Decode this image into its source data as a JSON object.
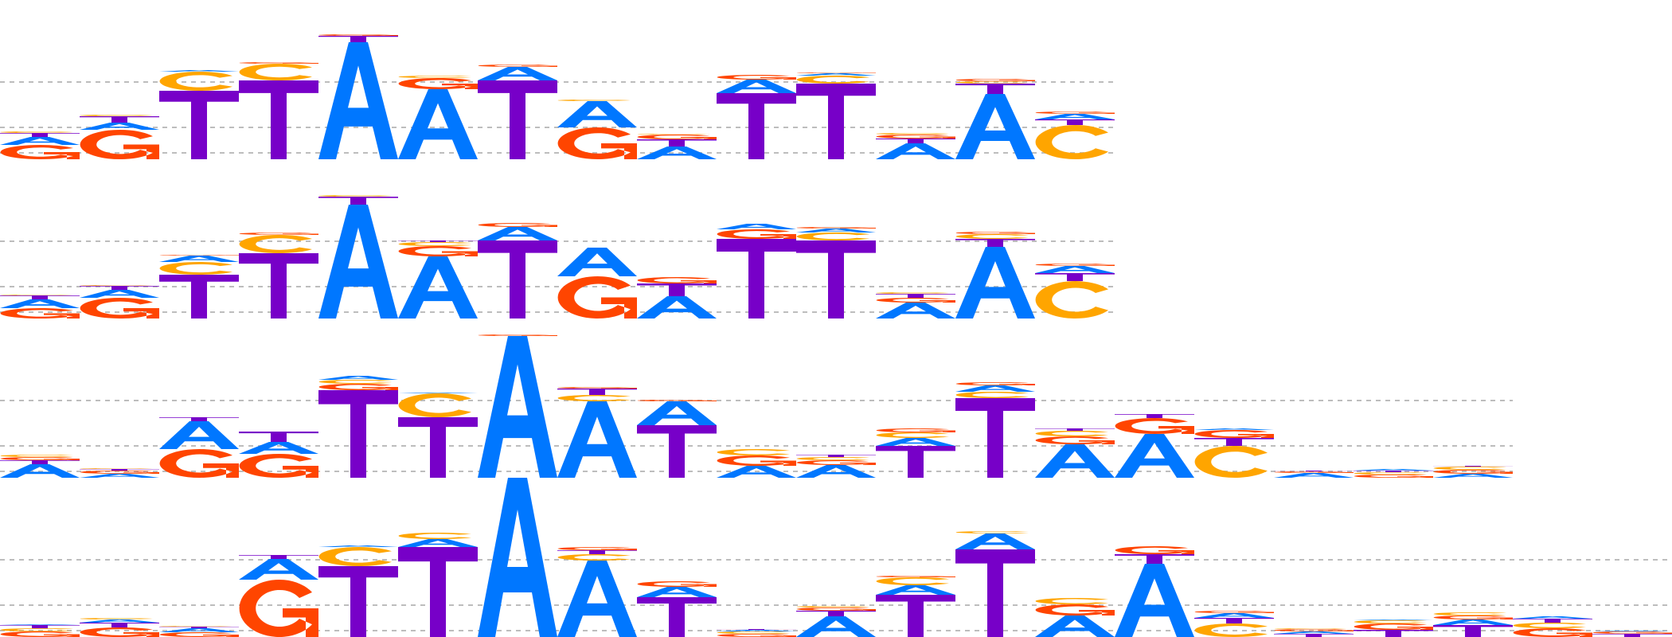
{
  "chart_data": {
    "type": "sequence-logo",
    "colors": {
      "A": "#0077ff",
      "C": "#ffa500",
      "G": "#ff4500",
      "T": "#7700c8"
    },
    "ylim": [
      0,
      2
    ],
    "gridlines": [
      0.08,
      0.4,
      0.97
    ],
    "rows": [
      {
        "columns": [
          [
            [
              "G",
              0.18
            ],
            [
              "A",
              0.1
            ],
            [
              "T",
              0.05
            ],
            [
              "C",
              0.02
            ]
          ],
          [
            [
              "G",
              0.37
            ],
            [
              "A",
              0.09
            ],
            [
              "T",
              0.08
            ],
            [
              "C",
              0.02
            ]
          ],
          [
            [
              "T",
              0.86
            ],
            [
              "C",
              0.24
            ],
            [
              "A",
              0.02
            ]
          ],
          [
            [
              "T",
              0.99
            ],
            [
              "C",
              0.21
            ],
            [
              "G",
              0.02
            ]
          ],
          [
            [
              "A",
              1.47
            ],
            [
              "T",
              0.08
            ],
            [
              "G",
              0.02
            ]
          ],
          [
            [
              "A",
              0.88
            ],
            [
              "G",
              0.14
            ],
            [
              "C",
              0.03
            ]
          ],
          [
            [
              "T",
              0.99
            ],
            [
              "A",
              0.17
            ],
            [
              "G",
              0.03
            ]
          ],
          [
            [
              "G",
              0.4
            ],
            [
              "A",
              0.33
            ],
            [
              "C",
              0.02
            ]
          ],
          [
            [
              "A",
              0.16
            ],
            [
              "T",
              0.09
            ],
            [
              "G",
              0.06
            ],
            [
              "C",
              0.01
            ]
          ],
          [
            [
              "T",
              0.83
            ],
            [
              "A",
              0.17
            ],
            [
              "G",
              0.06
            ]
          ],
          [
            [
              "T",
              0.95
            ],
            [
              "C",
              0.1
            ],
            [
              "A",
              0.03
            ],
            [
              "G",
              0.01
            ]
          ],
          [
            [
              "A",
              0.2
            ],
            [
              "T",
              0.06
            ],
            [
              "G",
              0.05
            ],
            [
              "C",
              0.02
            ]
          ],
          [
            [
              "A",
              0.82
            ],
            [
              "T",
              0.13
            ],
            [
              "C",
              0.03
            ],
            [
              "G",
              0.03
            ]
          ],
          [
            [
              "C",
              0.43
            ],
            [
              "T",
              0.07
            ],
            [
              "A",
              0.07
            ],
            [
              "G",
              0.03
            ]
          ]
        ]
      },
      {
        "columns": [
          [
            [
              "G",
              0.13
            ],
            [
              "A",
              0.11
            ],
            [
              "T",
              0.05
            ],
            [
              "C",
              0.01
            ]
          ],
          [
            [
              "G",
              0.26
            ],
            [
              "A",
              0.1
            ],
            [
              "T",
              0.05
            ],
            [
              "C",
              0.01
            ]
          ],
          [
            [
              "T",
              0.55
            ],
            [
              "C",
              0.16
            ],
            [
              "A",
              0.08
            ],
            [
              "G",
              0.01
            ]
          ],
          [
            [
              "T",
              0.82
            ],
            [
              "C",
              0.23
            ],
            [
              "G",
              0.03
            ]
          ],
          [
            [
              "A",
              1.43
            ],
            [
              "T",
              0.1
            ],
            [
              "C",
              0.02
            ]
          ],
          [
            [
              "A",
              0.78
            ],
            [
              "G",
              0.13
            ],
            [
              "C",
              0.05
            ],
            [
              "T",
              0.02
            ]
          ],
          [
            [
              "T",
              0.98
            ],
            [
              "A",
              0.17
            ],
            [
              "G",
              0.05
            ]
          ],
          [
            [
              "G",
              0.53
            ],
            [
              "A",
              0.36
            ]
          ],
          [
            [
              "A",
              0.28
            ],
            [
              "T",
              0.16
            ],
            [
              "G",
              0.08
            ]
          ],
          [
            [
              "T",
              1.0
            ],
            [
              "G",
              0.12
            ],
            [
              "A",
              0.07
            ]
          ],
          [
            [
              "T",
              0.98
            ],
            [
              "C",
              0.1
            ],
            [
              "A",
              0.05
            ],
            [
              "G",
              0.02
            ]
          ],
          [
            [
              "A",
              0.2
            ],
            [
              "G",
              0.06
            ],
            [
              "T",
              0.05
            ],
            [
              "C",
              0.02
            ]
          ],
          [
            [
              "A",
              0.9
            ],
            [
              "T",
              0.1
            ],
            [
              "C",
              0.06
            ],
            [
              "G",
              0.03
            ]
          ],
          [
            [
              "C",
              0.47
            ],
            [
              "T",
              0.1
            ],
            [
              "A",
              0.09
            ],
            [
              "G",
              0.03
            ]
          ]
        ]
      },
      {
        "columns": [
          [
            [
              "A",
              0.17
            ],
            [
              "T",
              0.05
            ],
            [
              "G",
              0.04
            ],
            [
              "C",
              0.03
            ]
          ],
          [
            [
              "A",
              0.05
            ],
            [
              "G",
              0.04
            ],
            [
              "T",
              0.02
            ],
            [
              "C",
              0.01
            ]
          ],
          [
            [
              "G",
              0.36
            ],
            [
              "A",
              0.35
            ],
            [
              "T",
              0.05
            ]
          ],
          [
            [
              "G",
              0.3
            ],
            [
              "A",
              0.15
            ],
            [
              "T",
              0.13
            ]
          ],
          [
            [
              "T",
              1.1
            ],
            [
              "G",
              0.08
            ],
            [
              "C",
              0.05
            ],
            [
              "A",
              0.05
            ]
          ],
          [
            [
              "T",
              0.76
            ],
            [
              "C",
              0.3
            ],
            [
              "A",
              0.01
            ]
          ],
          [
            [
              "A",
              1.78
            ],
            [
              "G",
              0.02
            ]
          ],
          [
            [
              "A",
              0.96
            ],
            [
              "C",
              0.08
            ],
            [
              "T",
              0.08
            ],
            [
              "G",
              0.02
            ]
          ],
          [
            [
              "T",
              0.66
            ],
            [
              "A",
              0.3
            ],
            [
              "G",
              0.02
            ]
          ],
          [
            [
              "A",
              0.15
            ],
            [
              "G",
              0.13
            ],
            [
              "C",
              0.08
            ]
          ],
          [
            [
              "A",
              0.16
            ],
            [
              "G",
              0.06
            ],
            [
              "C",
              0.04
            ],
            [
              "T",
              0.03
            ]
          ],
          [
            [
              "T",
              0.4
            ],
            [
              "A",
              0.1
            ],
            [
              "C",
              0.07
            ],
            [
              "G",
              0.05
            ]
          ],
          [
            [
              "T",
              1.0
            ],
            [
              "C",
              0.08
            ],
            [
              "A",
              0.08
            ],
            [
              "G",
              0.04
            ]
          ],
          [
            [
              "A",
              0.42
            ],
            [
              "G",
              0.1
            ],
            [
              "C",
              0.07
            ],
            [
              "T",
              0.03
            ]
          ],
          [
            [
              "A",
              0.55
            ],
            [
              "G",
              0.2
            ],
            [
              "T",
              0.05
            ]
          ],
          [
            [
              "C",
              0.4
            ],
            [
              "T",
              0.1
            ],
            [
              "G",
              0.1
            ],
            [
              "A",
              0.02
            ]
          ],
          [
            [
              "A",
              0.06
            ],
            [
              "G",
              0.02
            ],
            [
              "T",
              0.01
            ]
          ],
          [
            [
              "G",
              0.04
            ],
            [
              "C",
              0.03
            ],
            [
              "T",
              0.02
            ],
            [
              "A",
              0.02
            ]
          ],
          [
            [
              "A",
              0.05
            ],
            [
              "G",
              0.05
            ],
            [
              "C",
              0.04
            ],
            [
              "T",
              0.01
            ]
          ]
        ]
      },
      {
        "columns": [
          [
            [
              "G",
              0.07
            ],
            [
              "C",
              0.04
            ],
            [
              "T",
              0.04
            ],
            [
              "A",
              0.01
            ]
          ],
          [
            [
              "G",
              0.12
            ],
            [
              "T",
              0.06
            ],
            [
              "A",
              0.04
            ],
            [
              "C",
              0.02
            ]
          ],
          [
            [
              "G",
              0.06
            ],
            [
              "A",
              0.05
            ],
            [
              "T",
              0.02
            ],
            [
              "C",
              0.01
            ]
          ],
          [
            [
              "G",
              0.72
            ],
            [
              "A",
              0.26
            ],
            [
              "T",
              0.05
            ]
          ],
          [
            [
              "T",
              0.89
            ],
            [
              "C",
              0.24
            ],
            [
              "A",
              0.02
            ]
          ],
          [
            [
              "T",
              1.13
            ],
            [
              "A",
              0.1
            ],
            [
              "C",
              0.08
            ]
          ],
          [
            [
              "A",
              2.0
            ]
          ],
          [
            [
              "A",
              0.96
            ],
            [
              "C",
              0.08
            ],
            [
              "T",
              0.05
            ],
            [
              "G",
              0.04
            ]
          ],
          [
            [
              "T",
              0.5
            ],
            [
              "A",
              0.13
            ],
            [
              "G",
              0.07
            ]
          ],
          [
            [
              "G",
              0.04
            ],
            [
              "C",
              0.03
            ],
            [
              "A",
              0.02
            ],
            [
              "T",
              0.01
            ]
          ],
          [
            [
              "A",
              0.26
            ],
            [
              "T",
              0.07
            ],
            [
              "G",
              0.04
            ],
            [
              "C",
              0.02
            ]
          ],
          [
            [
              "T",
              0.53
            ],
            [
              "A",
              0.12
            ],
            [
              "C",
              0.1
            ],
            [
              "G",
              0.02
            ]
          ],
          [
            [
              "T",
              1.1
            ],
            [
              "A",
              0.2
            ],
            [
              "C",
              0.03
            ]
          ],
          [
            [
              "A",
              0.27
            ],
            [
              "G",
              0.14
            ],
            [
              "C",
              0.08
            ]
          ],
          [
            [
              "A",
              0.92
            ],
            [
              "T",
              0.12
            ],
            [
              "G",
              0.1
            ]
          ],
          [
            [
              "C",
              0.17
            ],
            [
              "T",
              0.07
            ],
            [
              "A",
              0.06
            ],
            [
              "G",
              0.03
            ]
          ],
          [
            [
              "T",
              0.04
            ],
            [
              "A",
              0.03
            ],
            [
              "G",
              0.03
            ],
            [
              "C",
              0.01
            ]
          ],
          [
            [
              "T",
              0.09
            ],
            [
              "G",
              0.08
            ],
            [
              "C",
              0.04
            ],
            [
              "A",
              0.01
            ]
          ],
          [
            [
              "T",
              0.15
            ],
            [
              "A",
              0.07
            ],
            [
              "G",
              0.05
            ],
            [
              "C",
              0.04
            ]
          ],
          [
            [
              "G",
              0.11
            ],
            [
              "C",
              0.07
            ],
            [
              "T",
              0.05
            ],
            [
              "A",
              0.03
            ]
          ],
          [
            [
              "T",
              0.04
            ],
            [
              "G",
              0.03
            ],
            [
              "A",
              0.01
            ]
          ]
        ]
      }
    ]
  }
}
